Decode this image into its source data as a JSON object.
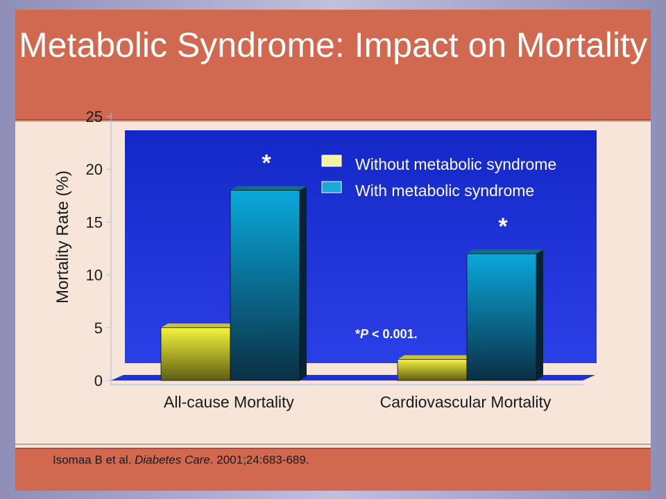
{
  "title": "Metabolic Syndrome: Impact on Mortality",
  "citation": {
    "authors": "Isomaa B et al.",
    "journal": "Diabetes Care",
    "details": "2001;24:683-689."
  },
  "colors": {
    "title_bar": "#d16850",
    "slide_bg": "#f6e5d8",
    "plot_bg": "#1d2fd6",
    "without": "#f2f23a",
    "with": "#0aa7d8"
  },
  "chart_data": {
    "type": "bar",
    "categories": [
      "All-cause Mortality",
      "Cardiovascular Mortality"
    ],
    "series": [
      {
        "name": "Without metabolic syndrome",
        "values": [
          5,
          2
        ]
      },
      {
        "name": "With metabolic syndrome",
        "values": [
          18,
          12
        ]
      }
    ],
    "ylabel": "Mortality Rate (%)",
    "xlabel": "",
    "ylim": [
      0,
      25
    ],
    "yticks": [
      0,
      5,
      10,
      15,
      20,
      25
    ],
    "significance_markers": [
      "*",
      "*"
    ],
    "annotation": {
      "prefix": "*",
      "variable": "P",
      "rest": " < 0.001."
    },
    "legend_position": "top-right",
    "grid": false
  }
}
